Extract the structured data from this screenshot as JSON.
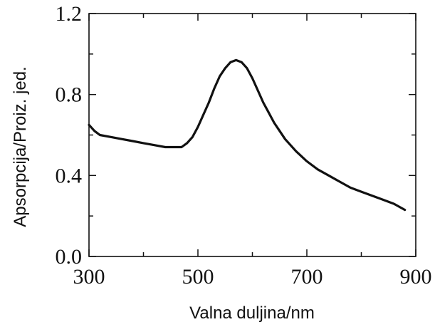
{
  "chart_data": {
    "type": "line",
    "title": "",
    "xlabel": "Valna duljina/nm",
    "ylabel": "Apsorpcija/Proiz. jed.",
    "xlim": [
      300,
      900
    ],
    "ylim": [
      0.0,
      1.2
    ],
    "xticks": [
      300,
      500,
      700,
      900
    ],
    "xtick_labels": [
      "300",
      "500",
      "700",
      "900"
    ],
    "yticks": [
      0.0,
      0.4,
      0.8,
      1.2
    ],
    "ytick_labels": [
      "0.0",
      "0.4",
      "0.8",
      "1.2"
    ],
    "grid": false,
    "line_color": "#111111",
    "series": [
      {
        "x": [
          300,
          310,
          320,
          340,
          360,
          380,
          400,
          420,
          440,
          460,
          470,
          480,
          490,
          500,
          510,
          520,
          530,
          540,
          550,
          560,
          570,
          580,
          590,
          600,
          610,
          620,
          630,
          640,
          650,
          660,
          680,
          700,
          720,
          740,
          760,
          780,
          800,
          820,
          840,
          860,
          880
        ],
        "y": [
          0.65,
          0.62,
          0.6,
          0.59,
          0.58,
          0.57,
          0.56,
          0.55,
          0.54,
          0.54,
          0.54,
          0.56,
          0.59,
          0.64,
          0.7,
          0.76,
          0.83,
          0.89,
          0.93,
          0.96,
          0.97,
          0.96,
          0.93,
          0.88,
          0.82,
          0.76,
          0.71,
          0.66,
          0.62,
          0.58,
          0.52,
          0.47,
          0.43,
          0.4,
          0.37,
          0.34,
          0.32,
          0.3,
          0.28,
          0.26,
          0.23
        ]
      }
    ]
  }
}
